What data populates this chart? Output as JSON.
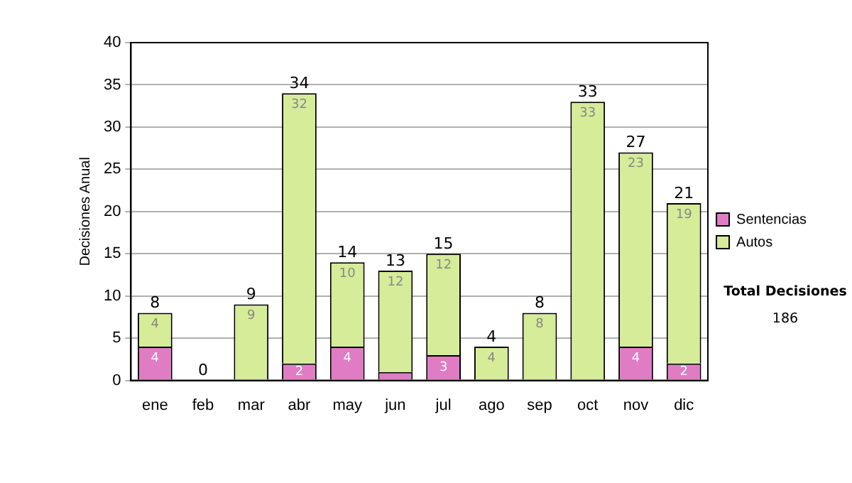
{
  "chart_data": {
    "type": "bar",
    "stacked": true,
    "ylabel": "Decisiones Anual",
    "categories": [
      "ene",
      "feb",
      "mar",
      "abr",
      "may",
      "jun",
      "jul",
      "ago",
      "sep",
      "oct",
      "nov",
      "dic"
    ],
    "series": [
      {
        "name": "Sentencias",
        "color": "#e07cc4",
        "values": [
          4,
          0,
          0,
          2,
          4,
          1,
          3,
          0,
          0,
          0,
          4,
          2
        ],
        "value_labels": [
          "4",
          null,
          null,
          "2",
          "4",
          null,
          "3",
          null,
          null,
          null,
          "4",
          "2"
        ]
      },
      {
        "name": "Autos",
        "color": "#d6ec98",
        "values": [
          4,
          0,
          9,
          32,
          10,
          12,
          12,
          4,
          8,
          33,
          23,
          19
        ],
        "value_labels": [
          "4",
          null,
          "9",
          "32",
          "10",
          "12",
          "12",
          "4",
          "8",
          "33",
          "23",
          "19"
        ]
      }
    ],
    "totals": [
      "8",
      "0",
      "9",
      "34",
      "14",
      "13",
      "15",
      "4",
      "8",
      "33",
      "27",
      "21"
    ],
    "ylim": [
      0,
      40
    ],
    "yticks": [
      0,
      5,
      10,
      15,
      20,
      25,
      30,
      35,
      40
    ],
    "grid": "y",
    "legend": "right",
    "annotations": [
      "Total Decisiones",
      "186"
    ]
  }
}
